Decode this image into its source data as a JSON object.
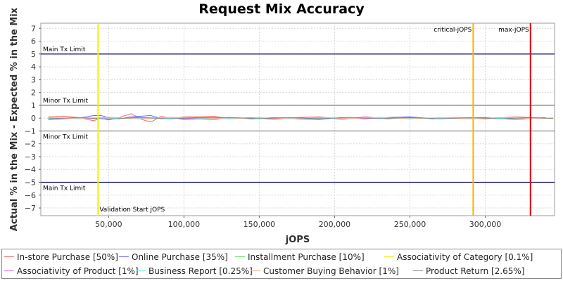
{
  "chart_data": {
    "type": "line",
    "title": "Request Mix Accuracy",
    "xlabel": "jOPS",
    "ylabel": "Actual % in the Mix - Expected % in the Mix",
    "xlim": [
      5000,
      346000
    ],
    "ylim": [
      -7.6,
      7.4
    ],
    "x_ticks": [
      50000,
      100000,
      150000,
      200000,
      250000,
      300000
    ],
    "x_tick_labels": [
      "50,000",
      "100,000",
      "150,000",
      "200,000",
      "250,000",
      "300,000"
    ],
    "y_ticks": [
      7,
      6,
      5,
      4,
      3,
      2,
      1,
      0,
      -1,
      -2,
      -3,
      -4,
      -5,
      -6,
      -7
    ],
    "y_tick_labels": [
      "7",
      "6",
      "5",
      "4",
      "3",
      "2",
      "1",
      "0",
      "−1",
      "−2",
      "−3",
      "−4",
      "−5",
      "−6",
      "−7"
    ],
    "grid": true,
    "legend_position": "bottom",
    "horizontal_lines": [
      {
        "y": 5,
        "label": "Main Tx Limit",
        "color": "#1a1a6e"
      },
      {
        "y": 1,
        "label": "Minor Tx Limit",
        "color": "#777777"
      },
      {
        "y": -1,
        "label": "Minor Tx Limit",
        "color": "#777777"
      },
      {
        "y": -5,
        "label": "Main Tx Limit",
        "color": "#1a1a6e"
      }
    ],
    "vertical_lines": [
      {
        "x": 43000,
        "label": "Validation Start jOPS",
        "color": "#f0f000"
      },
      {
        "x": 292000,
        "label": "critical-jOPS",
        "color": "#ffb000"
      },
      {
        "x": 330000,
        "label": "max-jOPS",
        "color": "#dd0000"
      }
    ],
    "series": [
      {
        "name": "In-store Purchase [50%]",
        "color": "#ff6666",
        "x": [
          10000,
          20000,
          30000,
          40000,
          45000,
          50000,
          57000,
          65000,
          72000,
          78000,
          85000,
          92000,
          100000,
          110000,
          120000,
          130000,
          145000,
          160000,
          175000,
          190000,
          205000,
          220000,
          235000,
          250000,
          265000,
          280000,
          300000,
          320000,
          340000
        ],
        "values": [
          0.1,
          0.15,
          0.05,
          -0.2,
          0.0,
          -0.15,
          0.05,
          0.35,
          -0.1,
          -0.3,
          0.15,
          -0.05,
          0.1,
          0.1,
          0.15,
          -0.05,
          0.05,
          -0.1,
          0.05,
          0.1,
          -0.1,
          0.1,
          -0.05,
          0.05,
          0.0,
          0.05,
          -0.05,
          0.1,
          0.0
        ]
      },
      {
        "name": "Online Purchase [35%]",
        "color": "#6666ff",
        "x": [
          10000,
          20000,
          30000,
          40000,
          45000,
          50000,
          57000,
          65000,
          72000,
          78000,
          85000,
          92000,
          100000,
          110000,
          120000,
          130000,
          145000,
          160000,
          175000,
          190000,
          205000,
          220000,
          235000,
          250000,
          265000,
          280000,
          300000,
          320000,
          340000
        ],
        "values": [
          -0.1,
          -0.05,
          0.0,
          0.2,
          0.2,
          0.05,
          -0.05,
          0.1,
          0.15,
          0.2,
          -0.05,
          0.05,
          -0.1,
          -0.05,
          -0.1,
          0.05,
          -0.05,
          0.05,
          -0.05,
          -0.1,
          0.05,
          -0.05,
          0.05,
          0.1,
          -0.05,
          0.0,
          0.05,
          -0.1,
          0.05
        ]
      },
      {
        "name": "Installment Purchase [10%]",
        "color": "#66dd66",
        "x": [
          10000,
          30000,
          50000,
          70000,
          90000,
          110000,
          130000,
          150000,
          170000,
          190000,
          210000,
          230000,
          250000,
          270000,
          290000,
          310000,
          330000,
          345000
        ],
        "values": [
          0.0,
          0.02,
          -0.05,
          0.03,
          0.0,
          -0.03,
          0.02,
          0.0,
          -0.02,
          0.03,
          0.0,
          -0.02,
          0.02,
          0.0,
          -0.03,
          0.02,
          0.0,
          0.01
        ]
      },
      {
        "name": "Associativity of Category [0.1%]",
        "color": "#f0f000",
        "x": [
          10000,
          50000,
          100000,
          150000,
          200000,
          250000,
          300000,
          345000
        ],
        "values": [
          0.0,
          0.0,
          0.0,
          0.0,
          0.0,
          0.0,
          0.0,
          0.0
        ]
      },
      {
        "name": "Associativity of Product [1%]",
        "color": "#ee66ee",
        "x": [
          10000,
          40000,
          70000,
          100000,
          130000,
          160000,
          190000,
          220000,
          250000,
          280000,
          310000,
          340000
        ],
        "values": [
          0.02,
          -0.03,
          0.03,
          -0.02,
          0.02,
          -0.02,
          0.03,
          -0.02,
          0.02,
          -0.02,
          0.02,
          0.0
        ]
      },
      {
        "name": "Business Report [0.25%]",
        "color": "#66eeee",
        "x": [
          10000,
          40000,
          70000,
          100000,
          130000,
          160000,
          190000,
          220000,
          250000,
          280000,
          310000,
          340000
        ],
        "values": [
          -0.02,
          0.02,
          -0.02,
          0.03,
          -0.02,
          0.02,
          -0.03,
          0.02,
          -0.02,
          0.03,
          -0.02,
          0.01
        ]
      },
      {
        "name": "Customer Buying Behavior [1%]",
        "color": "#ffaa99",
        "x": [
          10000,
          30000,
          50000,
          70000,
          90000,
          110000,
          130000,
          150000,
          170000,
          190000,
          210000,
          230000,
          250000,
          270000,
          290000,
          310000,
          330000,
          345000
        ],
        "values": [
          0.05,
          -0.05,
          0.08,
          -0.05,
          0.06,
          0.05,
          -0.06,
          0.04,
          -0.05,
          0.05,
          -0.04,
          0.06,
          -0.05,
          0.04,
          -0.06,
          0.05,
          -0.04,
          0.03
        ]
      },
      {
        "name": "Product Return [2.65%]",
        "color": "#888888",
        "x": [
          10000,
          30000,
          50000,
          70000,
          90000,
          110000,
          130000,
          150000,
          170000,
          190000,
          210000,
          230000,
          250000,
          270000,
          290000,
          310000,
          330000,
          345000
        ],
        "values": [
          -0.05,
          0.05,
          -0.08,
          0.06,
          -0.05,
          0.04,
          0.05,
          -0.04,
          0.05,
          -0.05,
          0.06,
          -0.04,
          0.05,
          -0.05,
          0.04,
          -0.05,
          0.05,
          -0.03
        ]
      }
    ]
  }
}
